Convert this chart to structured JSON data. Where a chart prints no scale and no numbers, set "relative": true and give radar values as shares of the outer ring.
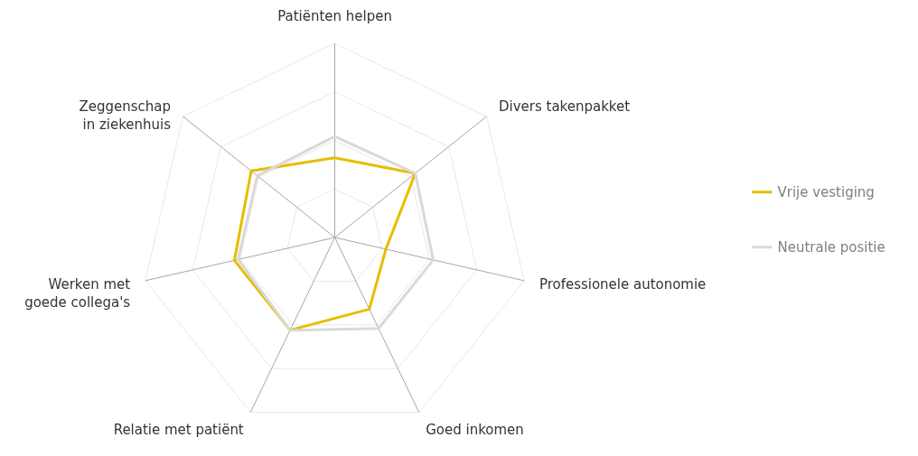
{
  "chart_data": {
    "type": "radar",
    "relative": true,
    "grid": true,
    "legend": "right",
    "categories": [
      "Patiënten helpen",
      "Divers takenpakket",
      "Professionele autonomie",
      "Goed inkomen",
      "Relatie met patiënt",
      "Werken met goede collega's",
      "Zeggenschap in ziekenhuis"
    ],
    "series": [
      {
        "name": "Vrije vestiging",
        "color": "#e5be01",
        "values": [
          0.41,
          0.53,
          0.27,
          0.41,
          0.53,
          0.53,
          0.55
        ]
      },
      {
        "name": "Neutrale positie",
        "color": "#d9d9d9",
        "values": [
          0.52,
          0.53,
          0.52,
          0.52,
          0.53,
          0.51,
          0.51
        ]
      }
    ]
  }
}
